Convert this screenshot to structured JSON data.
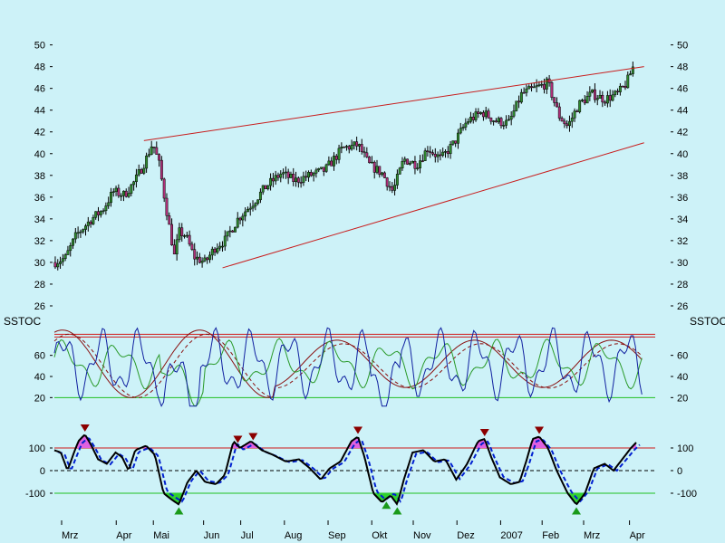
{
  "chart_data": [
    {
      "type": "candlestick",
      "title": "",
      "y_ticks": [
        26,
        28,
        30,
        32,
        34,
        36,
        38,
        40,
        42,
        44,
        46,
        48,
        50
      ],
      "ylim": [
        25,
        50.8
      ],
      "x_labels": [
        "Mrz",
        "Apr",
        "Mai",
        "Jun",
        "Jul",
        "Aug",
        "Sep",
        "Okt",
        "Nov",
        "Dez",
        "2007",
        "Feb",
        "Mrz",
        "Apr"
      ],
      "close_path": [
        {
          "m": 0.0,
          "v": 30.0
        },
        {
          "m": 0.25,
          "v": 30.4
        },
        {
          "m": 0.5,
          "v": 32.5
        },
        {
          "m": 0.85,
          "v": 34.0
        },
        {
          "m": 1.1,
          "v": 34.8
        },
        {
          "m": 1.35,
          "v": 36.5
        },
        {
          "m": 1.6,
          "v": 36.2
        },
        {
          "m": 1.85,
          "v": 37.5
        },
        {
          "m": 2.1,
          "v": 39.5
        },
        {
          "m": 2.25,
          "v": 41.0
        },
        {
          "m": 2.4,
          "v": 39.0
        },
        {
          "m": 2.6,
          "v": 34.0
        },
        {
          "m": 2.75,
          "v": 30.5
        },
        {
          "m": 2.85,
          "v": 32.8
        },
        {
          "m": 3.0,
          "v": 32.5
        },
        {
          "m": 3.2,
          "v": 30.5
        },
        {
          "m": 3.45,
          "v": 30.0
        },
        {
          "m": 3.7,
          "v": 31.5
        },
        {
          "m": 3.9,
          "v": 32.0
        },
        {
          "m": 4.2,
          "v": 34.0
        },
        {
          "m": 4.55,
          "v": 35.5
        },
        {
          "m": 4.85,
          "v": 37.0
        },
        {
          "m": 5.2,
          "v": 38.2
        },
        {
          "m": 5.5,
          "v": 37.5
        },
        {
          "m": 5.85,
          "v": 38.0
        },
        {
          "m": 6.2,
          "v": 38.5
        },
        {
          "m": 6.6,
          "v": 40.5
        },
        {
          "m": 6.95,
          "v": 40.8
        },
        {
          "m": 7.2,
          "v": 39.0
        },
        {
          "m": 7.5,
          "v": 38.2
        },
        {
          "m": 7.75,
          "v": 36.5
        },
        {
          "m": 8.0,
          "v": 39.5
        },
        {
          "m": 8.3,
          "v": 39.0
        },
        {
          "m": 8.55,
          "v": 40.5
        },
        {
          "m": 8.85,
          "v": 39.5
        },
        {
          "m": 9.15,
          "v": 41.0
        },
        {
          "m": 9.45,
          "v": 43.0
        },
        {
          "m": 9.8,
          "v": 43.8
        },
        {
          "m": 10.1,
          "v": 43.0
        },
        {
          "m": 10.4,
          "v": 42.8
        },
        {
          "m": 10.7,
          "v": 45.5
        },
        {
          "m": 11.0,
          "v": 46.0
        },
        {
          "m": 11.3,
          "v": 46.5
        },
        {
          "m": 11.55,
          "v": 43.5
        },
        {
          "m": 11.75,
          "v": 42.5
        },
        {
          "m": 12.0,
          "v": 44.5
        },
        {
          "m": 12.3,
          "v": 45.5
        },
        {
          "m": 12.6,
          "v": 45.0
        },
        {
          "m": 12.9,
          "v": 45.5
        },
        {
          "m": 13.1,
          "v": 46.5
        },
        {
          "m": 13.3,
          "v": 48.5
        }
      ],
      "trendlines": [
        {
          "from": {
            "m": 2.05,
            "v": 41.2
          },
          "to": {
            "m": 13.5,
            "v": 48.0
          }
        },
        {
          "from": {
            "m": 3.85,
            "v": 29.5
          },
          "to": {
            "m": 13.5,
            "v": 41.0
          }
        }
      ]
    },
    {
      "type": "line",
      "title": "SSTOC",
      "y_ticks": [
        20,
        40,
        60
      ],
      "ylim": [
        10,
        88
      ],
      "reference_lines": [
        20,
        80
      ],
      "series_colors": [
        "#1020a0",
        "#2a9a2a",
        "#8a1010"
      ]
    },
    {
      "type": "line",
      "y_ticks": [
        -100,
        0,
        100
      ],
      "ylim": [
        -180,
        200
      ],
      "reference_lines": [
        100,
        0,
        -100
      ],
      "series_colors": [
        "#000000",
        "#0020d0"
      ],
      "oscillator_path": [
        {
          "m": 0.0,
          "v": 90
        },
        {
          "m": 0.15,
          "v": 80
        },
        {
          "m": 0.3,
          "v": 0
        },
        {
          "m": 0.45,
          "v": 80
        },
        {
          "m": 0.55,
          "v": 130
        },
        {
          "m": 0.7,
          "v": 160
        },
        {
          "m": 0.85,
          "v": 110
        },
        {
          "m": 1.0,
          "v": 50
        },
        {
          "m": 1.2,
          "v": 30
        },
        {
          "m": 1.4,
          "v": 80
        },
        {
          "m": 1.55,
          "v": 60
        },
        {
          "m": 1.7,
          "v": 0
        },
        {
          "m": 1.85,
          "v": 90
        },
        {
          "m": 2.1,
          "v": 110
        },
        {
          "m": 2.3,
          "v": 70
        },
        {
          "m": 2.5,
          "v": -100
        },
        {
          "m": 2.7,
          "v": -130
        },
        {
          "m": 2.85,
          "v": -150
        },
        {
          "m": 3.05,
          "v": -50
        },
        {
          "m": 3.25,
          "v": 0
        },
        {
          "m": 3.45,
          "v": -50
        },
        {
          "m": 3.7,
          "v": -60
        },
        {
          "m": 3.9,
          "v": -20
        },
        {
          "m": 4.1,
          "v": 130
        },
        {
          "m": 4.25,
          "v": 100
        },
        {
          "m": 4.5,
          "v": 130
        },
        {
          "m": 4.75,
          "v": 90
        },
        {
          "m": 5.0,
          "v": 70
        },
        {
          "m": 5.3,
          "v": 40
        },
        {
          "m": 5.6,
          "v": 50
        },
        {
          "m": 5.85,
          "v": 10
        },
        {
          "m": 6.1,
          "v": -40
        },
        {
          "m": 6.3,
          "v": 10
        },
        {
          "m": 6.55,
          "v": 40
        },
        {
          "m": 6.8,
          "v": 130
        },
        {
          "m": 6.95,
          "v": 150
        },
        {
          "m": 7.1,
          "v": 60
        },
        {
          "m": 7.3,
          "v": -100
        },
        {
          "m": 7.5,
          "v": -140
        },
        {
          "m": 7.7,
          "v": -110
        },
        {
          "m": 7.85,
          "v": -150
        },
        {
          "m": 8.0,
          "v": -40
        },
        {
          "m": 8.2,
          "v": 80
        },
        {
          "m": 8.45,
          "v": 90
        },
        {
          "m": 8.7,
          "v": 40
        },
        {
          "m": 8.95,
          "v": 50
        },
        {
          "m": 9.2,
          "v": -40
        },
        {
          "m": 9.45,
          "v": 30
        },
        {
          "m": 9.7,
          "v": 130
        },
        {
          "m": 9.85,
          "v": 140
        },
        {
          "m": 10.0,
          "v": 60
        },
        {
          "m": 10.2,
          "v": -30
        },
        {
          "m": 10.45,
          "v": -60
        },
        {
          "m": 10.65,
          "v": -50
        },
        {
          "m": 10.8,
          "v": 40
        },
        {
          "m": 10.95,
          "v": 140
        },
        {
          "m": 11.1,
          "v": 150
        },
        {
          "m": 11.3,
          "v": 100
        },
        {
          "m": 11.5,
          "v": 0
        },
        {
          "m": 11.75,
          "v": -100
        },
        {
          "m": 11.95,
          "v": -150
        },
        {
          "m": 12.15,
          "v": -100
        },
        {
          "m": 12.35,
          "v": 10
        },
        {
          "m": 12.6,
          "v": 30
        },
        {
          "m": 12.8,
          "v": 0
        },
        {
          "m": 13.0,
          "v": 50
        },
        {
          "m": 13.2,
          "v": 100
        },
        {
          "m": 13.35,
          "v": 130
        }
      ],
      "sell_markers_m": [
        0.7,
        4.2,
        4.55,
        6.95,
        9.85,
        11.1
      ],
      "buy_markers_m": [
        2.85,
        7.6,
        7.85,
        11.95
      ]
    }
  ]
}
